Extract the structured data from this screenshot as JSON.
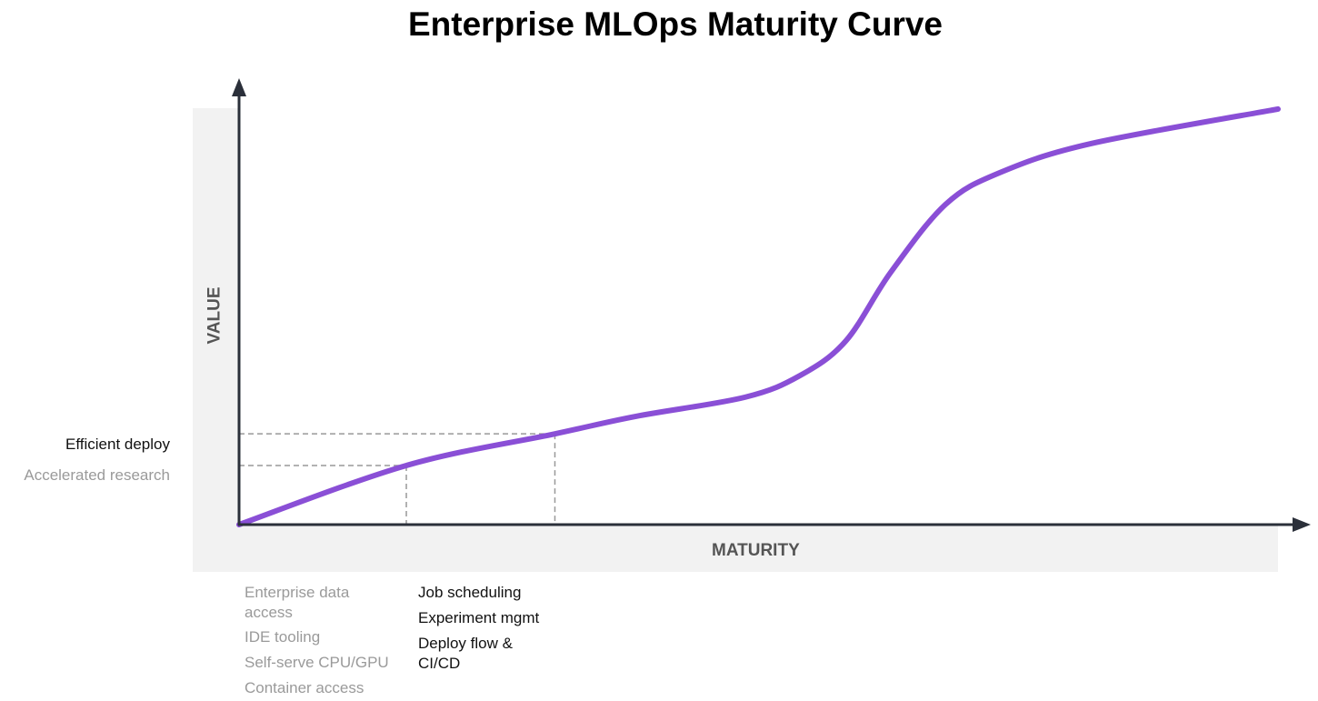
{
  "chart_data": {
    "type": "line",
    "title": "Enterprise MLOps Maturity Curve",
    "xlabel": "MATURITY",
    "ylabel": "VALUE",
    "xlim": [
      0,
      100
    ],
    "ylim": [
      0,
      100
    ],
    "grid": false,
    "series": [
      {
        "name": "maturity-curve",
        "color": "#8a4fd6",
        "x": [
          0,
          16.1,
          30.4,
          38.2,
          48.7,
          54,
          58.4,
          62.7,
          68,
          73.2,
          82,
          100
        ],
        "y": [
          0,
          14.2,
          21.8,
          26,
          30.6,
          35.8,
          44.1,
          60.5,
          76.9,
          84.5,
          91.5,
          99.8
        ]
      }
    ],
    "reference_points": [
      {
        "x": 16.1,
        "y": 14.2,
        "y_label": "Accelerated research"
      },
      {
        "x": 30.4,
        "y": 21.8,
        "y_label": "Efficient deploy"
      }
    ],
    "y_annotations": [
      "Efficient deploy",
      "Accelerated research"
    ],
    "x_annotations": {
      "stage1": [
        "Enterprise data access",
        "IDE tooling",
        "Self-serve CPU/GPU",
        "Container access"
      ],
      "stage2": [
        "Job scheduling",
        "Experiment mgmt",
        "Deploy flow & CI/CD"
      ]
    }
  }
}
